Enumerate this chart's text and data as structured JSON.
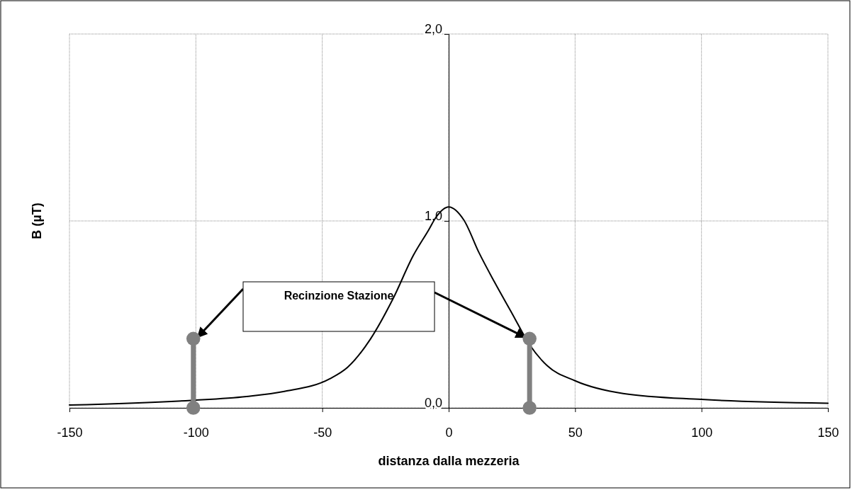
{
  "chart_data": {
    "type": "line",
    "xlabel": "distanza dalla mezzeria",
    "ylabel": "B (µT)",
    "xlim": [
      -150,
      150
    ],
    "ylim": [
      0,
      2
    ],
    "xticks": [
      -150,
      -100,
      -50,
      0,
      50,
      100,
      150
    ],
    "yticks": [
      {
        "value": 0,
        "label": "0,0"
      },
      {
        "value": 1,
        "label": "1,0"
      },
      {
        "value": 2,
        "label": "2,0"
      }
    ],
    "grid": true,
    "marker": "none",
    "line_style": "solid",
    "annotations": [
      "Recinzione Stazione"
    ],
    "series": [
      {
        "color": "#000000",
        "x": [
          -150,
          -102,
          -80,
          -65,
          -47,
          -40,
          -31,
          -22,
          -14,
          -8,
          -5,
          0,
          6,
          12,
          18,
          25,
          32,
          39,
          50,
          69,
          100,
          150
        ],
        "values": [
          0.015,
          0.04,
          0.061,
          0.088,
          0.156,
          0.217,
          0.367,
          0.584,
          0.815,
          0.95,
          1.02,
          1.075,
          1.005,
          0.83,
          0.676,
          0.507,
          0.338,
          0.225,
          0.145,
          0.077,
          0.045,
          0.025
        ]
      },
      {
        "color": "#808080",
        "marker": "circle",
        "x": [
          -101,
          -101
        ],
        "values": [
          0,
          0.37
        ]
      },
      {
        "color": "#808080",
        "marker": "circle",
        "x": [
          32,
          32
        ],
        "values": [
          0,
          0.37
        ]
      }
    ]
  }
}
